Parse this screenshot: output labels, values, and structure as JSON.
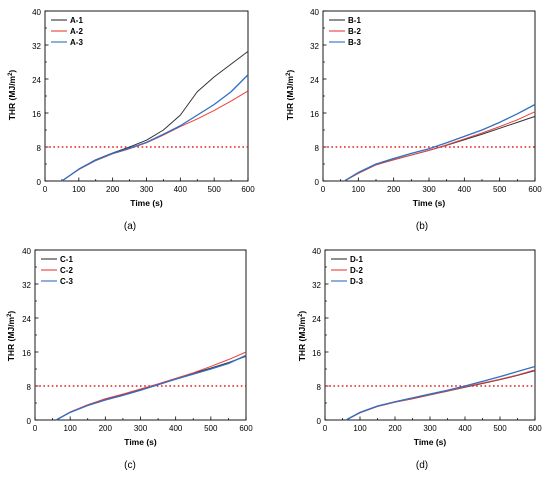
{
  "figure": {
    "panels_order": [
      "a",
      "b",
      "c",
      "d"
    ]
  },
  "colors": {
    "series": [
      "#333333",
      "#e8413c",
      "#2f6fc4"
    ],
    "threshold": "#e02020",
    "axis": "#000000"
  },
  "chart_data": [
    {
      "id": "a",
      "type": "line",
      "caption": "(a)",
      "xlabel": "Time (s)",
      "ylabel": "THR (MJ/m²)",
      "ylabel_main": "THR (MJ/m",
      "ylabel_sup": "2",
      "ylabel_end": ")",
      "xlim": [
        0,
        600
      ],
      "ylim": [
        0,
        40
      ],
      "xticks": [
        0,
        100,
        200,
        300,
        400,
        500,
        600
      ],
      "yticks": [
        0,
        8,
        16,
        24,
        32,
        40
      ],
      "xtick_labels": [
        "0",
        "100",
        "200",
        "300",
        "400",
        "500",
        "600"
      ],
      "ytick_labels": [
        "0",
        "8",
        "16",
        "24",
        "32",
        "40"
      ],
      "threshold": 8,
      "threshold_style": "dotted",
      "legend_position": "top-left",
      "grid": false,
      "series": [
        {
          "name": "A-1",
          "x": [
            50,
            100,
            150,
            200,
            250,
            300,
            350,
            400,
            450,
            500,
            550,
            600
          ],
          "y": [
            0,
            2.8,
            5.0,
            6.6,
            8.0,
            9.6,
            12.0,
            15.5,
            21.0,
            24.5,
            27.5,
            30.5
          ]
        },
        {
          "name": "A-2",
          "x": [
            50,
            100,
            150,
            200,
            250,
            300,
            350,
            400,
            450,
            500,
            550,
            600
          ],
          "y": [
            0,
            2.7,
            4.8,
            6.4,
            7.6,
            9.0,
            10.8,
            12.8,
            14.6,
            16.6,
            18.8,
            21.2
          ]
        },
        {
          "name": "A-3",
          "x": [
            50,
            100,
            150,
            200,
            250,
            300,
            350,
            400,
            450,
            500,
            550,
            600
          ],
          "y": [
            0,
            2.8,
            4.9,
            6.5,
            7.7,
            9.1,
            11.0,
            13.0,
            15.5,
            18.0,
            21.0,
            25.0
          ]
        }
      ]
    },
    {
      "id": "b",
      "type": "line",
      "caption": "(b)",
      "xlabel": "Time (s)",
      "ylabel": "THR (MJ/m²)",
      "ylabel_main": "THR (MJ/m",
      "ylabel_sup": "2",
      "ylabel_end": ")",
      "xlim": [
        0,
        600
      ],
      "ylim": [
        0,
        40
      ],
      "xticks": [
        0,
        100,
        200,
        300,
        400,
        500,
        600
      ],
      "yticks": [
        0,
        8,
        16,
        24,
        32,
        40
      ],
      "xtick_labels": [
        "0",
        "100",
        "200",
        "300",
        "400",
        "500",
        "600"
      ],
      "ytick_labels": [
        "0",
        "8",
        "16",
        "24",
        "32",
        "40"
      ],
      "threshold": 8,
      "threshold_style": "dotted",
      "legend_position": "top-left",
      "grid": false,
      "series": [
        {
          "name": "B-1",
          "x": [
            60,
            100,
            150,
            200,
            250,
            300,
            350,
            400,
            450,
            500,
            550,
            600
          ],
          "y": [
            0,
            1.8,
            3.8,
            5.0,
            6.1,
            7.2,
            8.4,
            9.7,
            11.0,
            12.4,
            13.8,
            15.2
          ]
        },
        {
          "name": "B-2",
          "x": [
            60,
            100,
            150,
            200,
            250,
            300,
            350,
            400,
            450,
            500,
            550,
            600
          ],
          "y": [
            0,
            1.8,
            3.8,
            5.0,
            6.1,
            7.2,
            8.5,
            9.9,
            11.3,
            12.8,
            14.4,
            16.3
          ]
        },
        {
          "name": "B-3",
          "x": [
            60,
            100,
            150,
            200,
            250,
            300,
            350,
            400,
            450,
            500,
            550,
            600
          ],
          "y": [
            0,
            2.0,
            4.0,
            5.3,
            6.5,
            7.6,
            9.0,
            10.5,
            12.0,
            13.8,
            15.8,
            18.0
          ]
        }
      ]
    },
    {
      "id": "c",
      "type": "line",
      "caption": "(c)",
      "xlabel": "Time (s)",
      "ylabel": "THR (MJ/m²)",
      "ylabel_main": "THR (MJ/m",
      "ylabel_sup": "2",
      "ylabel_end": ")",
      "xlim": [
        0,
        600
      ],
      "ylim": [
        0,
        40
      ],
      "xticks": [
        0,
        100,
        200,
        300,
        400,
        500,
        600
      ],
      "yticks": [
        0,
        8,
        16,
        24,
        32,
        40
      ],
      "xtick_labels": [
        "0",
        "100",
        "200",
        "300",
        "400",
        "500",
        "600"
      ],
      "ytick_labels": [
        "0",
        "8",
        "16",
        "24",
        "32",
        "40"
      ],
      "threshold": 8,
      "threshold_style": "dotted",
      "legend_position": "top-left",
      "grid": false,
      "series": [
        {
          "name": "C-1",
          "x": [
            60,
            100,
            150,
            200,
            250,
            300,
            350,
            400,
            450,
            500,
            550,
            600
          ],
          "y": [
            0,
            1.8,
            3.5,
            4.9,
            6.0,
            7.2,
            8.4,
            9.7,
            11.0,
            12.2,
            13.5,
            15.0
          ]
        },
        {
          "name": "C-2",
          "x": [
            60,
            100,
            150,
            200,
            250,
            300,
            350,
            400,
            450,
            500,
            550,
            600
          ],
          "y": [
            0,
            1.9,
            3.6,
            5.0,
            6.1,
            7.3,
            8.5,
            9.8,
            11.1,
            12.6,
            14.2,
            16.0
          ]
        },
        {
          "name": "C-3",
          "x": [
            60,
            100,
            150,
            200,
            250,
            300,
            350,
            400,
            450,
            500,
            550,
            600
          ],
          "y": [
            0,
            1.8,
            3.4,
            4.7,
            5.8,
            7.0,
            8.3,
            9.6,
            10.8,
            12.0,
            13.3,
            15.2
          ]
        }
      ]
    },
    {
      "id": "d",
      "type": "line",
      "caption": "(d)",
      "xlabel": "Time (s)",
      "ylabel": "THR (MJ/m²)",
      "ylabel_main": "THR (MJ/m",
      "ylabel_sup": "2",
      "ylabel_end": ")",
      "xlim": [
        0,
        600
      ],
      "ylim": [
        0,
        40
      ],
      "xticks": [
        0,
        100,
        200,
        300,
        400,
        500,
        600
      ],
      "yticks": [
        0,
        8,
        16,
        24,
        32,
        40
      ],
      "xtick_labels": [
        "0",
        "100",
        "200",
        "300",
        "400",
        "500",
        "600"
      ],
      "ytick_labels": [
        "0",
        "8",
        "16",
        "24",
        "32",
        "40"
      ],
      "threshold": 8,
      "threshold_style": "dotted",
      "legend_position": "top-left",
      "grid": false,
      "series": [
        {
          "name": "D-1",
          "x": [
            60,
            100,
            150,
            200,
            250,
            300,
            350,
            400,
            450,
            500,
            550,
            600
          ],
          "y": [
            0,
            1.7,
            3.2,
            4.2,
            5.0,
            5.9,
            6.8,
            7.7,
            8.6,
            9.5,
            10.5,
            11.6
          ]
        },
        {
          "name": "D-2",
          "x": [
            60,
            100,
            150,
            200,
            250,
            300,
            350,
            400,
            450,
            500,
            550,
            600
          ],
          "y": [
            0,
            1.7,
            3.2,
            4.2,
            5.0,
            5.9,
            6.8,
            7.8,
            8.7,
            9.6,
            10.6,
            11.8
          ]
        },
        {
          "name": "D-3",
          "x": [
            60,
            100,
            150,
            200,
            250,
            300,
            350,
            400,
            450,
            500,
            550,
            600
          ],
          "y": [
            0,
            1.8,
            3.3,
            4.3,
            5.2,
            6.1,
            7.0,
            8.0,
            9.1,
            10.2,
            11.4,
            12.6
          ]
        }
      ]
    }
  ]
}
